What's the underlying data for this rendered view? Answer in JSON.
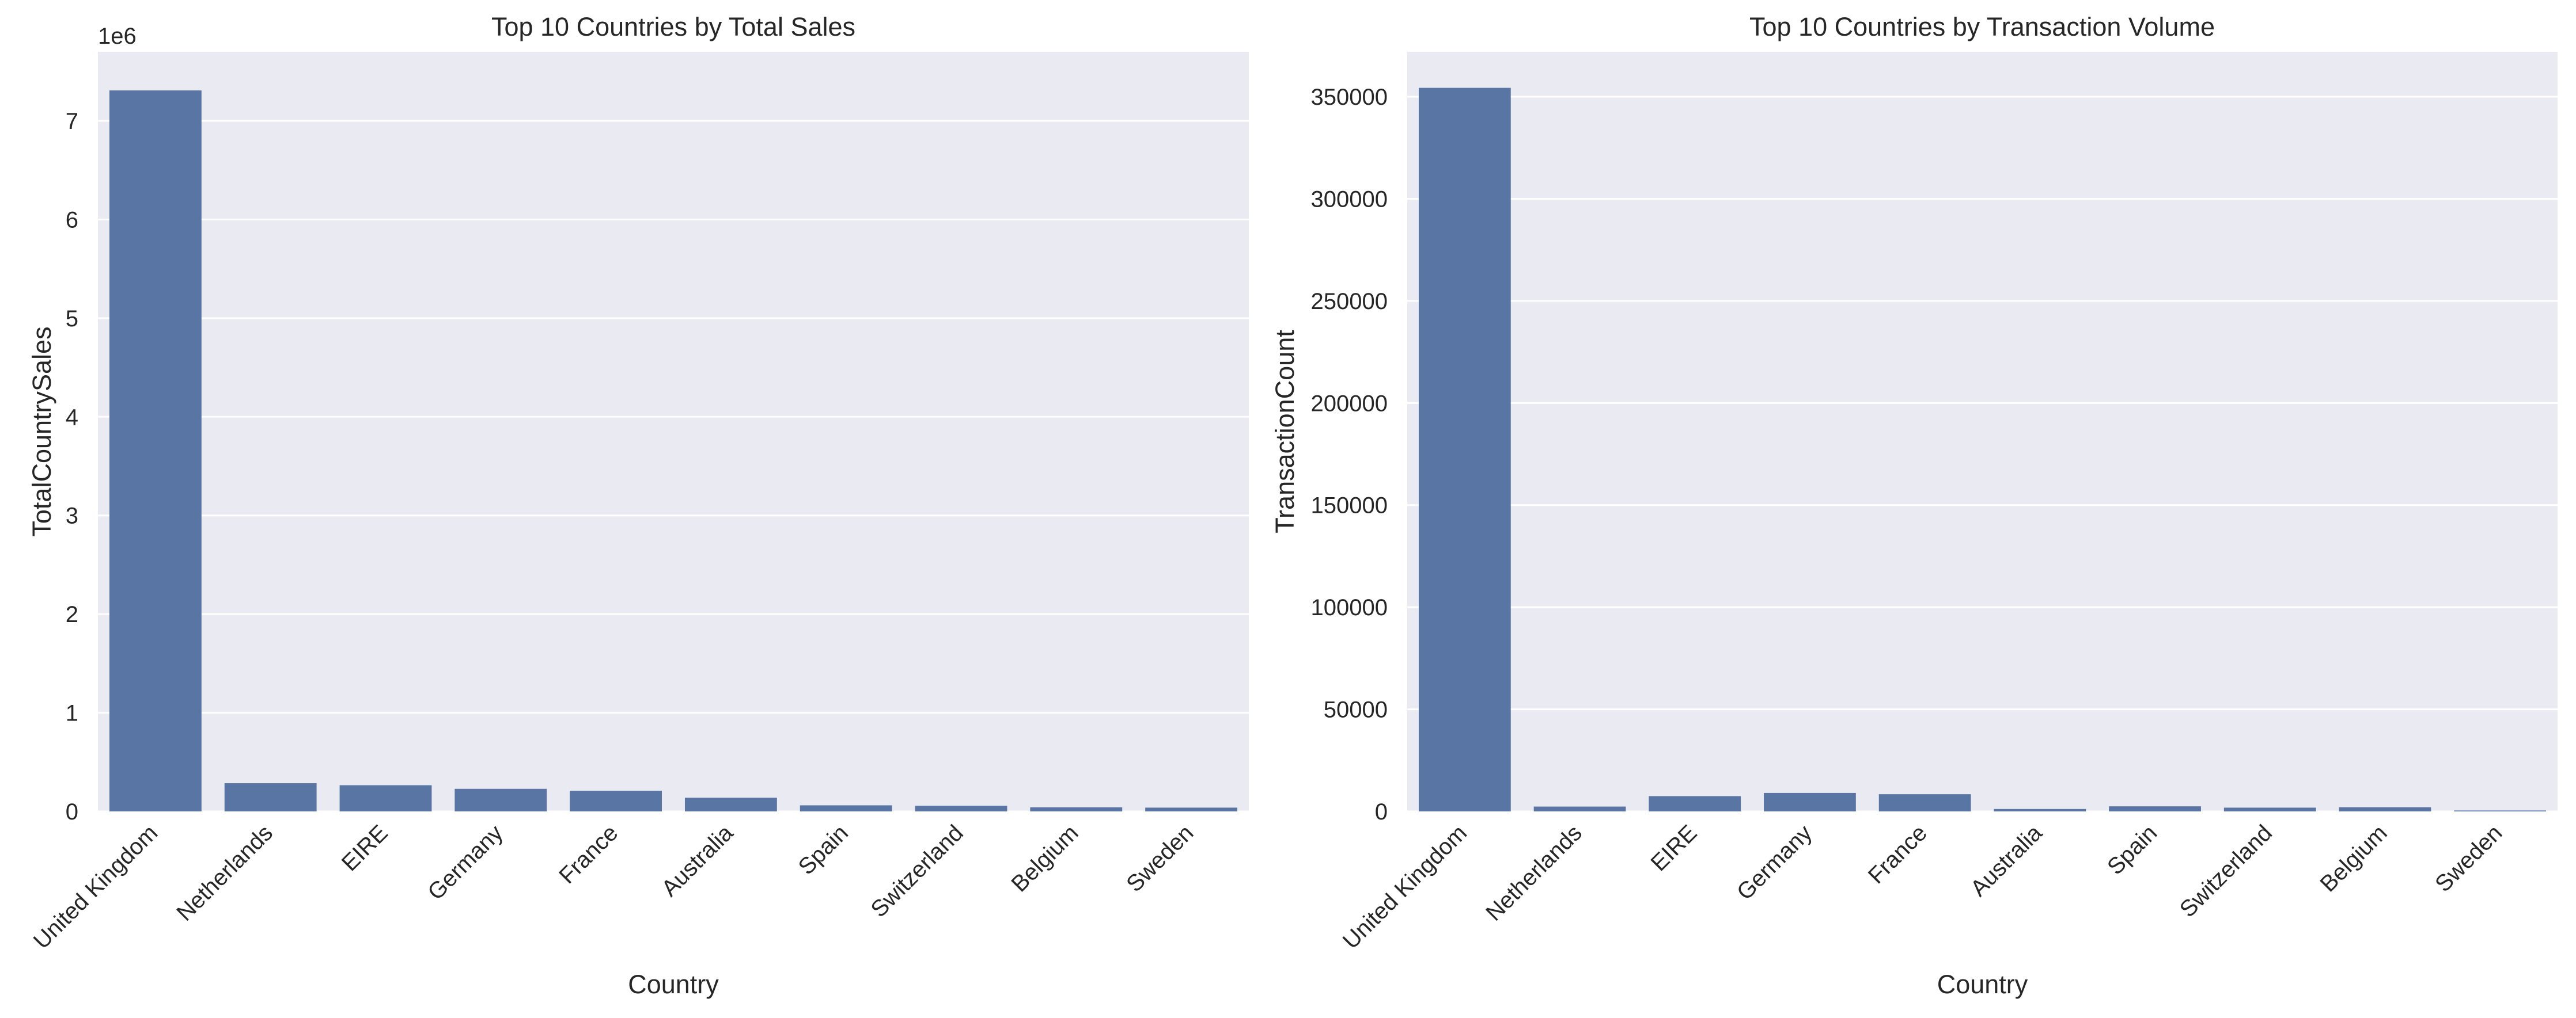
{
  "style": {
    "bar_color": "#5975a4",
    "axes_facecolor": "#eaeaf2",
    "grid_color": "#ffffff",
    "text_color": "#262626"
  },
  "chart_data": [
    {
      "type": "bar",
      "title": "Top 10 Countries by Total Sales",
      "xlabel": "Country",
      "ylabel": "TotalCountrySales",
      "offset_text": "1e6",
      "categories": [
        "United Kingdom",
        "Netherlands",
        "EIRE",
        "Germany",
        "France",
        "Australia",
        "Spain",
        "Switzerland",
        "Belgium",
        "Sweden"
      ],
      "values": [
        7308392,
        285446,
        265546,
        228867,
        209024,
        138521,
        61577,
        57090,
        41196,
        38378
      ],
      "ylim": [
        0,
        7700000
      ],
      "yticks": [
        0,
        1000000,
        2000000,
        3000000,
        4000000,
        5000000,
        6000000,
        7000000
      ],
      "ytick_labels": [
        "0",
        "1",
        "2",
        "3",
        "4",
        "5",
        "6",
        "7"
      ],
      "grid": true,
      "legend": "none"
    },
    {
      "type": "bar",
      "title": "Top 10 Countries by Transaction Volume",
      "xlabel": "Country",
      "ylabel": "TransactionCount",
      "offset_text": "",
      "categories": [
        "United Kingdom",
        "Netherlands",
        "EIRE",
        "Germany",
        "France",
        "Australia",
        "Spain",
        "Switzerland",
        "Belgium",
        "Sweden"
      ],
      "values": [
        354345,
        2371,
        7485,
        9042,
        8408,
        1185,
        2485,
        1842,
        2031,
        451
      ],
      "ylim": [
        0,
        372000
      ],
      "yticks": [
        0,
        50000,
        100000,
        150000,
        200000,
        250000,
        300000,
        350000
      ],
      "ytick_labels": [
        "0",
        "50000",
        "100000",
        "150000",
        "200000",
        "250000",
        "300000",
        "350000"
      ],
      "grid": true,
      "legend": "none"
    }
  ]
}
